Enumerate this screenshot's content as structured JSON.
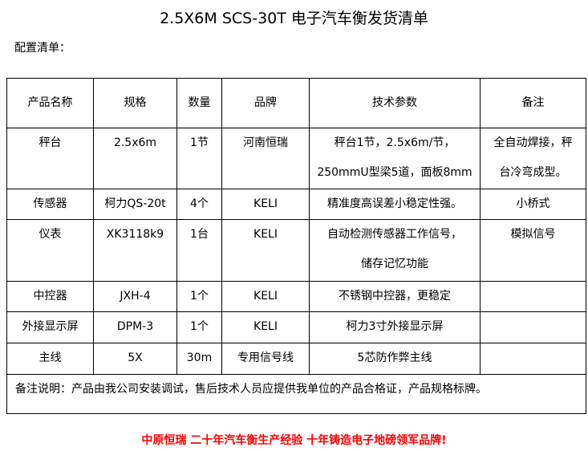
{
  "title": "2.5X6M SCS-30T 电子汽车衡发货清单",
  "subtitle": "配置清单：",
  "table": {
    "headers": [
      "产品名称",
      "规格",
      "数量",
      "品牌",
      "技术参数",
      "备注"
    ],
    "rows": [
      {
        "name": "秤台",
        "spec": "2.5x6m",
        "qty": "1节",
        "brand": "河南恒瑞",
        "tech": [
          "秤台1节，2.5x6m/节，",
          "250mmU型梁5道，面板8mm"
        ],
        "remark": [
          "全自动焊接，秤",
          "台冷弯成型。"
        ]
      },
      {
        "name": "传感器",
        "spec": "柯力QS-20t",
        "qty": "4个",
        "brand": "KELI",
        "tech": [
          "精准度高误差小稳定性强。"
        ],
        "remark": [
          "小桥式"
        ]
      },
      {
        "name": "仪表",
        "spec": "XK3118k9",
        "qty": "1台",
        "brand": "KELI",
        "tech": [
          "自动检测传感器工作信号，",
          "储存记忆功能"
        ],
        "remark": [
          "模拟信号"
        ]
      },
      {
        "name": "中控器",
        "spec": "JXH-4",
        "qty": "1个",
        "brand": "KELI",
        "tech": [
          "不锈钢中控器，更稳定"
        ],
        "remark": []
      },
      {
        "name": "外接显示屏",
        "spec": "DPM-3",
        "qty": "1个",
        "brand": "KELI",
        "tech": [
          "柯力3寸外接显示屏"
        ],
        "remark": []
      },
      {
        "name": "主线",
        "spec": "5X",
        "qty": "30m",
        "brand": "专用信号线",
        "tech": [
          "5芯防作弊主线"
        ],
        "remark": []
      }
    ],
    "note": "备注说明：产品由我公司安装调试，售后技术人员应提供我单位的产品合格证，产品规格标牌。"
  },
  "slogan": "中原恒瑞 二十年汽车衡生产经验 十年铸造电子地磅领军品牌!",
  "colors": {
    "slogan": "#ff0000"
  }
}
